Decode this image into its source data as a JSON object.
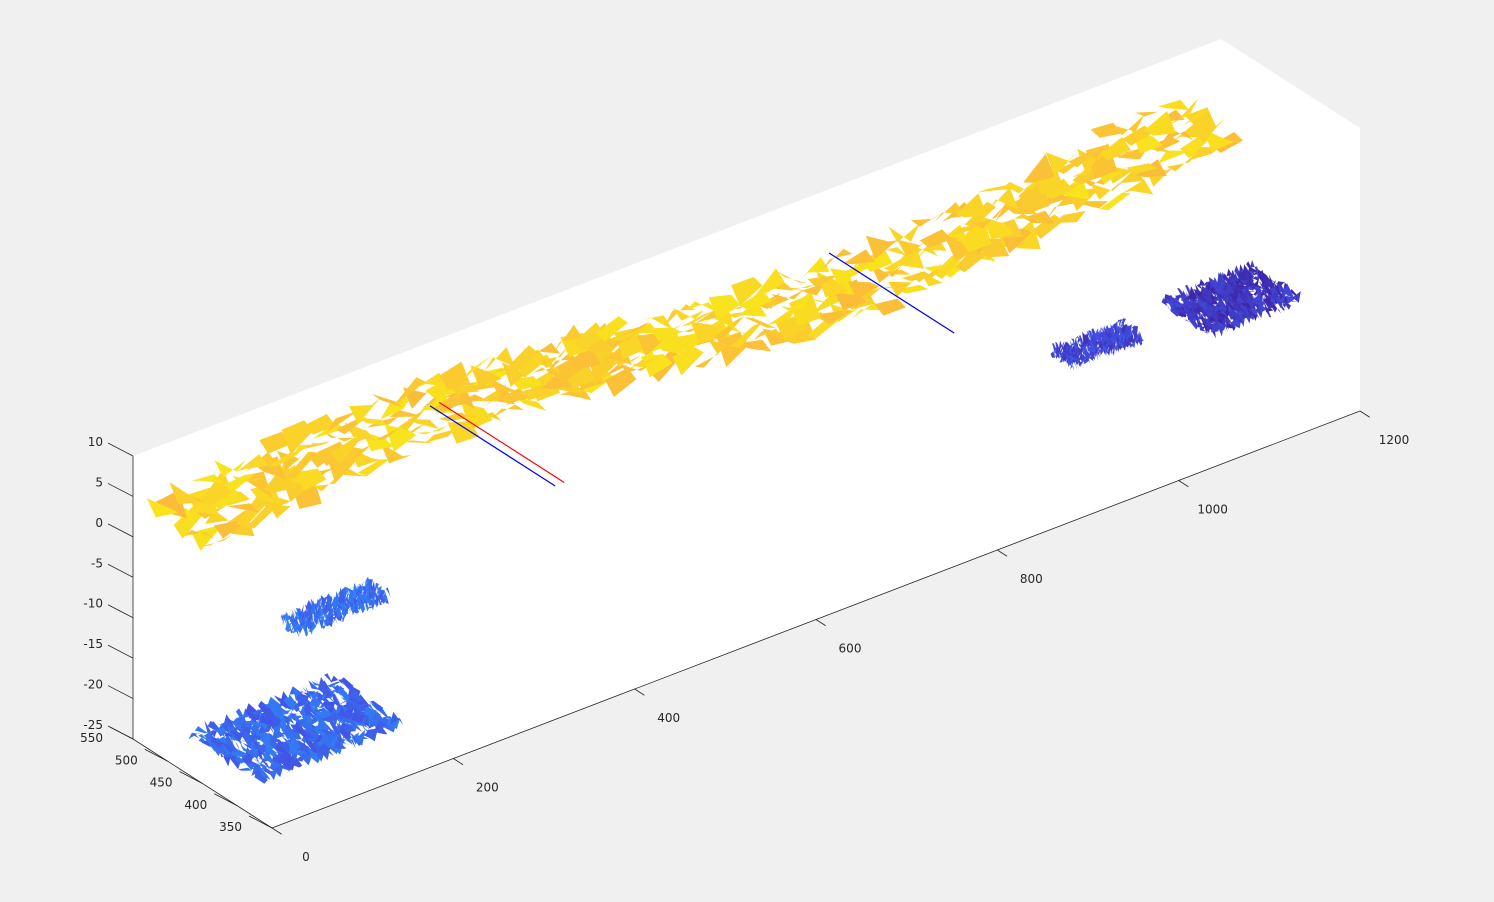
{
  "figure": {
    "background": "#f0f0f0",
    "axes_color": "#262626",
    "pane_color": "#ffffff"
  },
  "chart_data": {
    "type": "surface3d",
    "title": "",
    "xlabel": "",
    "ylabel": "",
    "zlabel": "",
    "xlim": [
      0,
      1200
    ],
    "ylim": [
      350,
      550
    ],
    "zlim": [
      -25,
      10
    ],
    "x_ticks": [
      0,
      200,
      400,
      600,
      800,
      1000,
      1200
    ],
    "y_ticks": [
      350,
      400,
      450,
      500,
      550
    ],
    "z_ticks": [
      10,
      5,
      0,
      -5,
      -10,
      -15,
      -20,
      -25
    ],
    "x_tick_labels": [
      "0",
      "200",
      "400",
      "600",
      "800",
      "1000",
      "1200"
    ],
    "y_tick_labels": [
      "350",
      "400",
      "450",
      "500",
      "550"
    ],
    "z_tick_labels": [
      "10",
      "5",
      "0",
      "-5",
      "-10",
      "-15",
      "-20",
      "-25"
    ],
    "colormap": "parula",
    "colormap_stops": [
      "#3e26a8",
      "#4254e6",
      "#2e87f7",
      "#1ab2d6",
      "#48cb86",
      "#c2bc31",
      "#fbb93c",
      "#f9e71a"
    ],
    "grid": false,
    "legend": "none",
    "surfaces": [
      {
        "name": "",
        "x_range": [
          0,
          1140
        ],
        "y_range": [
          440,
          530
        ],
        "z_approx": 5,
        "color_level": 0.93
      },
      {
        "name": "",
        "x_range": [
          0,
          160
        ],
        "y_range": [
          370,
          470
        ],
        "z_approx": -20,
        "color_level": 0.2
      },
      {
        "name": "",
        "x_range": [
          100,
          200
        ],
        "y_range": [
          440,
          470
        ],
        "z_approx": -10,
        "color_level": 0.22
      },
      {
        "name": "",
        "x_range": [
          920,
          1000
        ],
        "y_range": [
          400,
          430
        ],
        "z_approx": -10,
        "color_level": 0.1
      },
      {
        "name": "",
        "x_range": [
          1050,
          1150
        ],
        "y_range": [
          370,
          440
        ],
        "z_approx": -10,
        "color_level": 0.05
      }
    ],
    "line_segments": [
      {
        "color": "#ff0000",
        "x": 330,
        "y_range": [
          360,
          540
        ],
        "z": 3
      },
      {
        "color": "#0000ff",
        "x": 320,
        "y_range": [
          360,
          540
        ],
        "z": 3
      },
      {
        "color": "#0000ff",
        "x": 760,
        "y_range": [
          360,
          540
        ],
        "z": 3
      }
    ]
  }
}
